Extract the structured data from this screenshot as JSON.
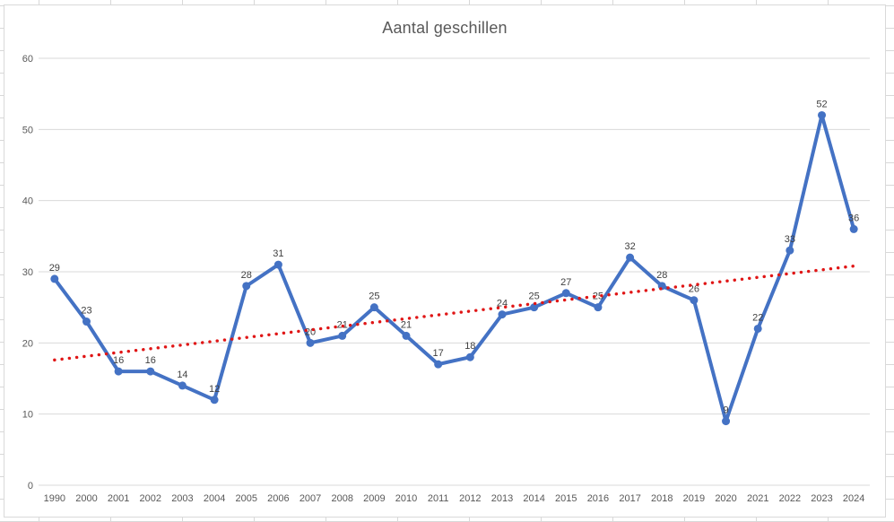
{
  "chart_data": {
    "type": "line",
    "title": "Aantal geschillen",
    "categories": [
      "1990",
      "2000",
      "2001",
      "2002",
      "2003",
      "2004",
      "2005",
      "2006",
      "2007",
      "2008",
      "2009",
      "2010",
      "2011",
      "2012",
      "2013",
      "2014",
      "2015",
      "2016",
      "2017",
      "2018",
      "2019",
      "2020",
      "2021",
      "2022",
      "2023",
      "2024"
    ],
    "series": [
      {
        "name": "Aantal geschillen",
        "values": [
          29,
          23,
          16,
          16,
          14,
          12,
          28,
          31,
          20,
          21,
          25,
          21,
          17,
          18,
          24,
          25,
          27,
          25,
          32,
          28,
          26,
          9,
          22,
          33,
          52,
          36
        ],
        "color": "#4472C4",
        "marker": "circle",
        "data_labels": "above"
      }
    ],
    "trendline": {
      "type": "linear",
      "style": "dotted",
      "color": "#E01616",
      "start_value": 17.6,
      "end_value": 30.8
    },
    "y_axis": {
      "min": 0,
      "max": 60,
      "step": 10,
      "ticks": [
        "0",
        "10",
        "20",
        "30",
        "40",
        "50",
        "60"
      ]
    },
    "x_axis": {
      "label_color": "#595959"
    },
    "legend": "none",
    "grid": "horizontal",
    "colors": {
      "line": "#4472C4",
      "trend": "#E01616",
      "gridline": "#d9d9d9",
      "axis_text": "#595959",
      "data_label_text": "#404040",
      "title_text": "#595959",
      "chart_border": "#d9d9d9",
      "sheet_grid": "#d8d8d8"
    }
  }
}
